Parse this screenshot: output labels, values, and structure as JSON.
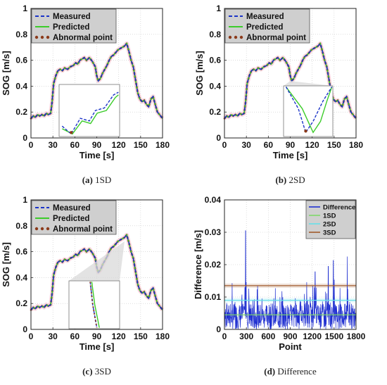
{
  "chart_data": [
    {
      "type": "line",
      "panel_id": "a",
      "caption_letter": "(a)",
      "caption_text": " 1SD",
      "xlabel": "Time [s]",
      "ylabel": "SOG [m/s]",
      "xlim": [
        0,
        180
      ],
      "ylim": [
        0,
        1
      ],
      "xticks": [
        0,
        30,
        60,
        90,
        120,
        150,
        180
      ],
      "yticks": [
        0,
        0.2,
        0.4,
        0.6,
        0.8,
        1
      ],
      "ytick_labels": [
        "0",
        "0.2",
        "0.4",
        "0.6",
        "0.8",
        "1"
      ],
      "grid": true,
      "legend_position": "top-left",
      "legend": [
        "Measured",
        "Predicted",
        "Abnormal point"
      ],
      "inset": "bottom-middle",
      "x": [
        0,
        3,
        6,
        9,
        12,
        15,
        18,
        21,
        24,
        27,
        29,
        31,
        34,
        37,
        40,
        43,
        46,
        50,
        54,
        58,
        61,
        64,
        67,
        70,
        73,
        76,
        80,
        84,
        88,
        90,
        92,
        95,
        98,
        101,
        104,
        107,
        110,
        113,
        116,
        119,
        122,
        125,
        128,
        131,
        134,
        137,
        140,
        143,
        146,
        149,
        152,
        155,
        158,
        161,
        164,
        167,
        170,
        173,
        176,
        180
      ],
      "series": [
        {
          "name": "Measured",
          "values": [
            0.15,
            0.17,
            0.16,
            0.18,
            0.17,
            0.18,
            0.17,
            0.19,
            0.18,
            0.19,
            0.28,
            0.42,
            0.48,
            0.52,
            0.53,
            0.52,
            0.54,
            0.53,
            0.55,
            0.56,
            0.58,
            0.57,
            0.6,
            0.61,
            0.62,
            0.6,
            0.62,
            0.59,
            0.55,
            0.48,
            0.44,
            0.46,
            0.5,
            0.53,
            0.56,
            0.6,
            0.63,
            0.64,
            0.66,
            0.68,
            0.69,
            0.7,
            0.71,
            0.73,
            0.67,
            0.6,
            0.55,
            0.45,
            0.35,
            0.3,
            0.28,
            0.29,
            0.26,
            0.24,
            0.3,
            0.32,
            0.26,
            0.2,
            0.18,
            0.15
          ]
        },
        {
          "name": "Predicted",
          "values": [
            0.15,
            0.17,
            0.16,
            0.18,
            0.17,
            0.18,
            0.17,
            0.19,
            0.18,
            0.19,
            0.28,
            0.42,
            0.48,
            0.52,
            0.53,
            0.52,
            0.54,
            0.53,
            0.55,
            0.56,
            0.58,
            0.57,
            0.6,
            0.61,
            0.62,
            0.6,
            0.62,
            0.59,
            0.55,
            0.48,
            0.44,
            0.46,
            0.5,
            0.53,
            0.56,
            0.6,
            0.63,
            0.64,
            0.66,
            0.68,
            0.69,
            0.7,
            0.71,
            0.73,
            0.67,
            0.6,
            0.55,
            0.45,
            0.35,
            0.3,
            0.28,
            0.29,
            0.26,
            0.24,
            0.3,
            0.32,
            0.26,
            0.2,
            0.18,
            0.15
          ]
        },
        {
          "name": "Abnormal point",
          "values": [
            0.15,
            0.17,
            0.16,
            0.18,
            0.17,
            0.18,
            0.17,
            0.19,
            0.18,
            0.19,
            0.28,
            0.42,
            0.48,
            0.52,
            0.53,
            0.52,
            0.54,
            0.53,
            0.55,
            0.56,
            0.58,
            0.57,
            0.6,
            0.61,
            0.62,
            0.6,
            0.62,
            0.59,
            0.55,
            0.48,
            0.44,
            0.46,
            0.5,
            0.53,
            0.56,
            0.6,
            0.63,
            0.64,
            0.66,
            0.68,
            0.69,
            0.7,
            0.71,
            0.73,
            0.67,
            0.6,
            0.55,
            0.45,
            0.35,
            0.3,
            0.28,
            0.29,
            0.26,
            0.24,
            0.3,
            0.32,
            0.26,
            0.2,
            0.18,
            0.15
          ]
        }
      ]
    },
    {
      "type": "line",
      "panel_id": "b",
      "caption_letter": "(b)",
      "caption_text": " 2SD",
      "xlabel": "Time [s]",
      "ylabel": "SOG [m/s]",
      "xlim": [
        0,
        180
      ],
      "ylim": [
        0,
        1
      ],
      "xticks": [
        0,
        30,
        60,
        90,
        120,
        150,
        180
      ],
      "yticks": [
        0,
        0.2,
        0.4,
        0.6,
        0.8,
        1
      ],
      "ytick_labels": [
        "0",
        "0.2",
        "0.4",
        "0.6",
        "0.8",
        "1"
      ],
      "grid": true,
      "legend_position": "top-left",
      "legend": [
        "Measured",
        "Predicted",
        "Abnormal point"
      ],
      "inset": "middle",
      "x": [
        0,
        3,
        6,
        9,
        12,
        15,
        18,
        21,
        24,
        27,
        29,
        31,
        34,
        37,
        40,
        43,
        46,
        50,
        54,
        58,
        61,
        64,
        67,
        70,
        73,
        76,
        80,
        84,
        88,
        90,
        92,
        95,
        98,
        101,
        104,
        107,
        110,
        113,
        116,
        119,
        122,
        125,
        128,
        131,
        134,
        137,
        140,
        143,
        146,
        149,
        152,
        155,
        158,
        161,
        164,
        167,
        170,
        173,
        176,
        180
      ],
      "series": [
        {
          "name": "Measured",
          "values": [
            0.15,
            0.17,
            0.16,
            0.18,
            0.17,
            0.18,
            0.17,
            0.19,
            0.18,
            0.19,
            0.28,
            0.42,
            0.48,
            0.52,
            0.53,
            0.52,
            0.54,
            0.53,
            0.55,
            0.56,
            0.58,
            0.57,
            0.6,
            0.61,
            0.62,
            0.6,
            0.62,
            0.59,
            0.55,
            0.48,
            0.44,
            0.46,
            0.5,
            0.53,
            0.56,
            0.6,
            0.63,
            0.64,
            0.66,
            0.68,
            0.69,
            0.7,
            0.71,
            0.73,
            0.67,
            0.6,
            0.55,
            0.45,
            0.35,
            0.3,
            0.28,
            0.29,
            0.26,
            0.24,
            0.3,
            0.32,
            0.26,
            0.2,
            0.18,
            0.15
          ]
        },
        {
          "name": "Predicted",
          "values": [
            0.15,
            0.17,
            0.16,
            0.18,
            0.17,
            0.18,
            0.17,
            0.19,
            0.18,
            0.19,
            0.28,
            0.42,
            0.48,
            0.52,
            0.53,
            0.52,
            0.54,
            0.53,
            0.55,
            0.56,
            0.58,
            0.57,
            0.6,
            0.61,
            0.62,
            0.6,
            0.62,
            0.59,
            0.55,
            0.48,
            0.44,
            0.46,
            0.5,
            0.53,
            0.56,
            0.6,
            0.63,
            0.64,
            0.66,
            0.68,
            0.69,
            0.7,
            0.71,
            0.73,
            0.67,
            0.6,
            0.55,
            0.45,
            0.35,
            0.3,
            0.28,
            0.29,
            0.26,
            0.24,
            0.3,
            0.32,
            0.26,
            0.2,
            0.18,
            0.15
          ]
        },
        {
          "name": "Abnormal point",
          "values": [
            0.15,
            0.17,
            0.16,
            0.18,
            0.17,
            0.18,
            0.17,
            0.19,
            0.18,
            0.19,
            0.28,
            0.42,
            0.48,
            0.52,
            0.53,
            0.52,
            0.54,
            0.53,
            0.55,
            0.56,
            0.58,
            0.57,
            0.6,
            0.61,
            0.62,
            0.6,
            0.62,
            0.59,
            0.55,
            0.48,
            0.44,
            0.46,
            0.5,
            0.53,
            0.56,
            0.6,
            0.63,
            0.64,
            0.66,
            0.68,
            0.69,
            0.7,
            0.71,
            0.73,
            0.67,
            0.6,
            0.55,
            0.45,
            0.35,
            0.3,
            0.28,
            0.29,
            0.26,
            0.24,
            0.3,
            0.32,
            0.26,
            0.2,
            0.18,
            0.15
          ]
        }
      ]
    },
    {
      "type": "line",
      "panel_id": "c",
      "caption_letter": "(c)",
      "caption_text": " 3SD",
      "xlabel": "Time [s]",
      "ylabel": "SOG [m/s]",
      "xlim": [
        0,
        180
      ],
      "ylim": [
        0,
        1
      ],
      "xticks": [
        0,
        30,
        60,
        90,
        120,
        150,
        180
      ],
      "yticks": [
        0,
        0.2,
        0.4,
        0.6,
        0.8,
        1
      ],
      "ytick_labels": [
        "0",
        "0.2",
        "0.4",
        "0.6",
        "0.8",
        "1"
      ],
      "grid": true,
      "legend_position": "top-left",
      "legend": [
        "Measured",
        "Predicted",
        "Abnormal point"
      ],
      "inset": "bottom-middle",
      "x": [
        0,
        3,
        6,
        9,
        12,
        15,
        18,
        21,
        24,
        27,
        29,
        31,
        34,
        37,
        40,
        43,
        46,
        50,
        54,
        58,
        61,
        64,
        67,
        70,
        73,
        76,
        80,
        84,
        88,
        90,
        92,
        95,
        98,
        101,
        104,
        107,
        110,
        113,
        116,
        119,
        122,
        125,
        128,
        131,
        134,
        137,
        140,
        143,
        146,
        149,
        152,
        155,
        158,
        161,
        164,
        167,
        170,
        173,
        176,
        180
      ],
      "series": [
        {
          "name": "Measured",
          "values": [
            0.15,
            0.17,
            0.16,
            0.18,
            0.17,
            0.18,
            0.17,
            0.19,
            0.18,
            0.19,
            0.28,
            0.42,
            0.48,
            0.52,
            0.53,
            0.52,
            0.54,
            0.53,
            0.55,
            0.56,
            0.58,
            0.57,
            0.6,
            0.61,
            0.62,
            0.6,
            0.62,
            0.59,
            0.55,
            0.48,
            0.44,
            0.46,
            0.5,
            0.53,
            0.56,
            0.6,
            0.63,
            0.64,
            0.66,
            0.68,
            0.69,
            0.7,
            0.71,
            0.73,
            0.67,
            0.6,
            0.55,
            0.45,
            0.35,
            0.3,
            0.28,
            0.29,
            0.26,
            0.24,
            0.3,
            0.32,
            0.26,
            0.2,
            0.18,
            0.15
          ]
        },
        {
          "name": "Predicted",
          "values": [
            0.15,
            0.17,
            0.16,
            0.18,
            0.17,
            0.18,
            0.17,
            0.19,
            0.18,
            0.19,
            0.28,
            0.42,
            0.48,
            0.52,
            0.53,
            0.52,
            0.54,
            0.53,
            0.55,
            0.56,
            0.58,
            0.57,
            0.6,
            0.61,
            0.62,
            0.6,
            0.62,
            0.59,
            0.55,
            0.48,
            0.44,
            0.46,
            0.5,
            0.53,
            0.56,
            0.6,
            0.63,
            0.64,
            0.66,
            0.68,
            0.69,
            0.7,
            0.71,
            0.73,
            0.67,
            0.6,
            0.55,
            0.45,
            0.35,
            0.3,
            0.28,
            0.29,
            0.26,
            0.24,
            0.3,
            0.32,
            0.26,
            0.2,
            0.18,
            0.15
          ]
        },
        {
          "name": "Abnormal point",
          "values": [
            0.15,
            0.17,
            0.16,
            0.18,
            0.17,
            0.18,
            0.17,
            0.19,
            0.18,
            0.19,
            0.28,
            0.42,
            0.48,
            0.52,
            0.53,
            0.52,
            0.54,
            0.53,
            0.55,
            0.56,
            0.58,
            0.57,
            0.6,
            0.61,
            0.62,
            0.6,
            0.62,
            0.59,
            0.55,
            0.48,
            0.44,
            0.46,
            0.5,
            0.53,
            0.56,
            0.6,
            0.63,
            0.64,
            0.66,
            0.68,
            0.69,
            0.7,
            0.71,
            0.73,
            0.67,
            0.6,
            0.55,
            0.45,
            0.35,
            0.3,
            0.28,
            0.29,
            0.26,
            0.24,
            0.3,
            0.32,
            0.26,
            0.2,
            0.18,
            0.15
          ]
        }
      ]
    },
    {
      "type": "line",
      "panel_id": "d",
      "caption_letter": "(d)",
      "caption_text": " Difference",
      "xlabel": "Point",
      "ylabel": "Difference [m/s]",
      "xlim": [
        0,
        1800
      ],
      "ylim": [
        0,
        0.04
      ],
      "xticks": [
        0,
        300,
        600,
        900,
        1200,
        1500,
        1800
      ],
      "yticks": [
        0,
        0.01,
        0.02,
        0.03,
        0.04
      ],
      "ytick_labels": [
        "0",
        "0.01",
        "0.02",
        "0.03",
        "0.04"
      ],
      "grid": true,
      "legend_position": "top-right",
      "legend": [
        "Difference",
        "1SD",
        "2SD",
        "3SD"
      ],
      "thresholds": [
        {
          "name": "1SD",
          "value": 0.0045
        },
        {
          "name": "2SD",
          "value": 0.009
        },
        {
          "name": "3SD",
          "value": 0.0135
        }
      ],
      "difference_peaks": [
        {
          "x": 290,
          "y": 0.0305
        },
        {
          "x": 1240,
          "y": 0.0178
        },
        {
          "x": 1420,
          "y": 0.0195
        },
        {
          "x": 1490,
          "y": 0.0213
        },
        {
          "x": 1680,
          "y": 0.0225
        }
      ],
      "difference_count": 600
    }
  ]
}
